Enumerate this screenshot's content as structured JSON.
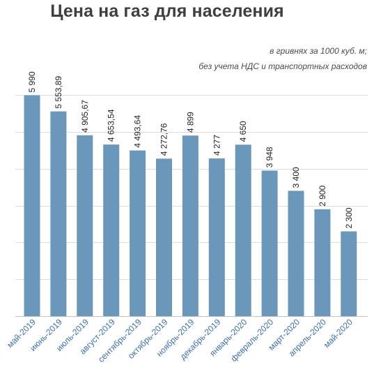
{
  "header": {
    "title": "Цена на газ для населения",
    "subtitle_line1": "в гривнях за 1000 куб. м;",
    "subtitle_line2": "без учета НДС и транспортных расходов"
  },
  "chart_data": {
    "type": "bar",
    "title": "Цена на газ для населения",
    "subtitle": "в гривнях за 1000 куб. м; без учета НДС и транспортных расходов",
    "categories": [
      "май-2019",
      "июнь-2019",
      "июль-2019",
      "август-2019",
      "сентябрь-2019",
      "октябрь-2019",
      "ноябрь-2019",
      "декабрь-2019",
      "январь-2020",
      "февраль-2020",
      "март-2020",
      "апрель-2020",
      "май-2020"
    ],
    "values": [
      5990,
      5553.89,
      4905.67,
      4653.54,
      4493.64,
      4272.76,
      4899,
      4277,
      4650,
      3948,
      3400,
      2900,
      2300
    ],
    "value_labels": [
      "5 990",
      "5 553,89",
      "4 905,67",
      "4 653,54",
      "4 493,64",
      "4 272,76",
      "4 899",
      "4 277",
      "4 650",
      "3 948",
      "3 400",
      "2 900",
      "2 300"
    ],
    "ylim": [
      0,
      6000
    ],
    "yticks": [
      0,
      1000,
      2000,
      3000,
      4000,
      5000,
      6000
    ],
    "grid": true,
    "legend": "none",
    "bar_color": "#6a97ba",
    "tick_label_color": "#3b6fb0"
  }
}
